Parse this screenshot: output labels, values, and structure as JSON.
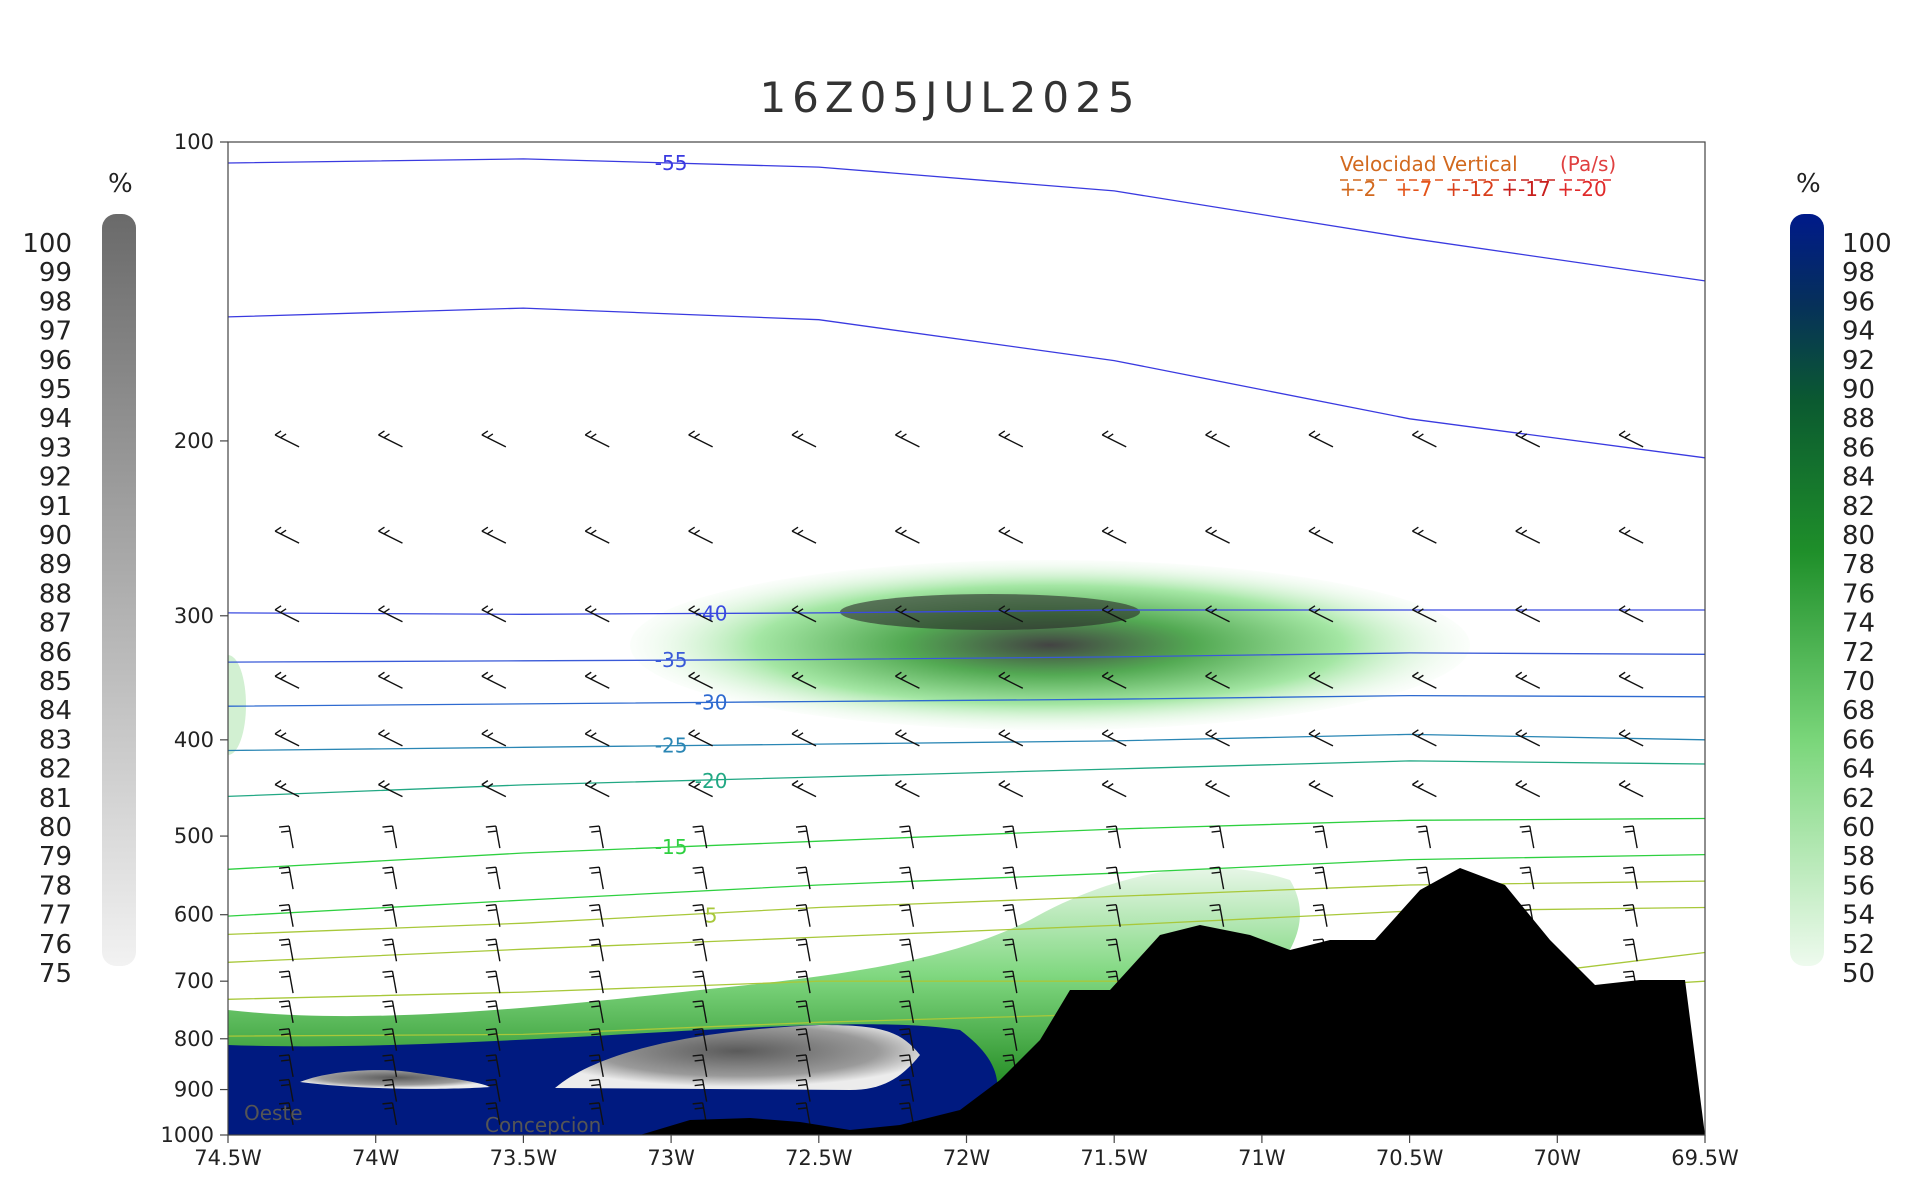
{
  "chart_data": {
    "type": "contour",
    "title": "16Z05JUL2025",
    "y_axis": {
      "scale": "log",
      "range": [
        1000,
        100
      ],
      "ticks": [
        100,
        200,
        300,
        400,
        500,
        600,
        700,
        800,
        900,
        1000
      ]
    },
    "x_axis": {
      "range": [
        -74.5,
        -69.5
      ],
      "ticks": [
        -74.5,
        -74,
        -73.5,
        -73,
        -72.5,
        -72,
        -71.5,
        -71,
        -70.5,
        -70,
        -69.5
      ],
      "tick_labels": [
        "74.5W",
        "74W",
        "73.5W",
        "73W",
        "72.5W",
        "72W",
        "71.5W",
        "71W",
        "70.5W",
        "70W",
        "69.5W"
      ]
    },
    "left_colorbar": {
      "unit": "%",
      "labels": [
        "100",
        "99",
        "98",
        "97",
        "96",
        "95",
        "94",
        "93",
        "92",
        "91",
        "90",
        "89",
        "88",
        "87",
        "86",
        "85",
        "84",
        "83",
        "82",
        "81",
        "80",
        "79",
        "78",
        "77",
        "76",
        "75"
      ]
    },
    "right_colorbar": {
      "unit": "%",
      "labels": [
        "100",
        "98",
        "96",
        "94",
        "92",
        "90",
        "88",
        "86",
        "84",
        "82",
        "80",
        "78",
        "76",
        "74",
        "72",
        "70",
        "68",
        "66",
        "64",
        "62",
        "60",
        "58",
        "56",
        "54",
        "52",
        "50"
      ]
    },
    "legend": {
      "title_a": "Velocidad Vertical",
      "title_b": "(Pa/s)",
      "entries": [
        "+-2",
        "+-7",
        "+-12",
        "+-17",
        "+-20"
      ],
      "colors": [
        "#d2691e",
        "#e4541a",
        "#d9401c",
        "#c8201e",
        "#e02a2a"
      ]
    },
    "temperature_contours": [
      {
        "value": -55,
        "label": "-55",
        "color": "#3a3ae0"
      },
      {
        "value": -40,
        "label": "-40",
        "color": "#3a4ae0"
      },
      {
        "value": -35,
        "label": "-35",
        "color": "#3a5ad8"
      },
      {
        "value": -30,
        "label": "-30",
        "color": "#2e6ad0"
      },
      {
        "value": -25,
        "label": "-25",
        "color": "#2a86b4"
      },
      {
        "value": -20,
        "label": "-20",
        "color": "#22a884"
      },
      {
        "value": -15,
        "label": "-15",
        "color": "#2ed040"
      },
      {
        "value": 5,
        "label": "5",
        "color": "#a8c83a"
      }
    ],
    "terrain_labels": [
      "Oeste",
      "Concepcion"
    ],
    "colors": {
      "terrain": "#000000",
      "high_rh": "#001a80",
      "cloud_gray": "#7a7a7a",
      "rh_green": "#3cc03c"
    }
  }
}
